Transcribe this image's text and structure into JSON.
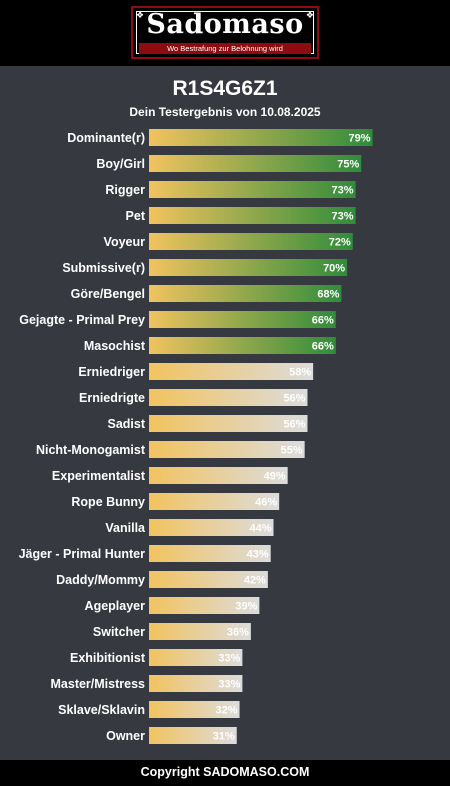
{
  "header": {
    "logo_text": "Sadomaso",
    "logo_tagline": "Wo Bestrafung zur Belohnung wird"
  },
  "footer": {
    "copyright": "Copyright SADOMASO.COM"
  },
  "colors": {
    "background": "#363940",
    "bar_start": "#f2c35f",
    "bar_end_high": "#2f8c3a",
    "bar_end_low": "#dcdcdc",
    "brand_red": "#8d0c10"
  },
  "chart_data": {
    "type": "bar",
    "orientation": "horizontal",
    "title": "R1S4G6Z1",
    "subtitle": "Dein Testergebnis von 10.08.2025",
    "categories": [
      "Dominante(r)",
      "Boy/Girl",
      "Rigger",
      "Pet",
      "Voyeur",
      "Submissive(r)",
      "Göre/Bengel",
      "Gejagte - Primal Prey",
      "Masochist",
      "Erniedriger",
      "Erniedrigte",
      "Sadist",
      "Nicht-Monogamist",
      "Experimentalist",
      "Rope Bunny",
      "Vanilla",
      "Jäger - Primal Hunter",
      "Daddy/Mommy",
      "Ageplayer",
      "Switcher",
      "Exhibitionist",
      "Master/Mistress",
      "Sklave/Sklavin",
      "Owner"
    ],
    "values": [
      79,
      75,
      73,
      73,
      72,
      70,
      68,
      66,
      66,
      58,
      56,
      56,
      55,
      49,
      46,
      44,
      43,
      42,
      39,
      36,
      33,
      33,
      32,
      31
    ],
    "value_labels": [
      "79%",
      "75%",
      "73%",
      "73%",
      "72%",
      "70%",
      "68%",
      "66%",
      "66%",
      "58%",
      "56%",
      "56%",
      "55%",
      "49%",
      "46%",
      "44%",
      "43%",
      "42%",
      "39%",
      "36%",
      "33%",
      "33%",
      "32%",
      "31%"
    ],
    "unit": "%",
    "xlim": [
      0,
      100
    ]
  }
}
